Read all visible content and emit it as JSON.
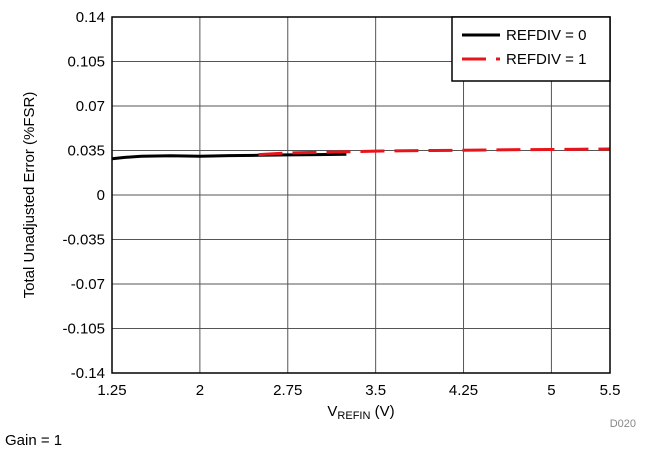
{
  "chart_data": {
    "type": "line",
    "xlabel_main": "V",
    "xlabel_sub": "REFIN",
    "xlabel_unit": " (V)",
    "ylabel": "Total Unadjusted Error (%FSR)",
    "xlim": [
      1.25,
      5.5
    ],
    "ylim": [
      -0.14,
      0.14
    ],
    "xticks": [
      "1.25",
      "2",
      "2.75",
      "3.5",
      "4.25",
      "5",
      "5.5"
    ],
    "xtick_values": [
      1.25,
      2,
      2.75,
      3.5,
      4.25,
      5,
      5.5
    ],
    "yticks": [
      "0.14",
      "0.105",
      "0.07",
      "0.035",
      "0",
      "-0.035",
      "-0.07",
      "-0.105",
      "-0.14"
    ],
    "ytick_values": [
      0.14,
      0.105,
      0.07,
      0.035,
      0,
      -0.035,
      -0.07,
      -0.105,
      -0.14
    ],
    "grid": true,
    "legend_position": "top-right",
    "series": [
      {
        "name": "REFDIV = 0",
        "color": "#000000",
        "dash": "solid",
        "x": [
          1.25,
          1.35,
          1.5,
          1.75,
          2.0,
          2.25,
          2.5,
          2.75,
          3.0,
          3.25
        ],
        "y": [
          0.0285,
          0.0295,
          0.0305,
          0.0308,
          0.0305,
          0.031,
          0.0312,
          0.0315,
          0.0318,
          0.032
        ]
      },
      {
        "name": "REFDIV = 1",
        "color": "#e8141b",
        "dash": "dashed",
        "x": [
          2.5,
          2.75,
          3.0,
          3.25,
          3.5,
          3.75,
          4.0,
          4.25,
          4.5,
          4.75,
          5.0,
          5.25,
          5.5
        ],
        "y": [
          0.0318,
          0.033,
          0.0335,
          0.034,
          0.0345,
          0.0348,
          0.035,
          0.0352,
          0.0355,
          0.0357,
          0.0358,
          0.036,
          0.0362
        ]
      }
    ]
  },
  "figure_id": "D020",
  "footnote": "Gain = 1"
}
